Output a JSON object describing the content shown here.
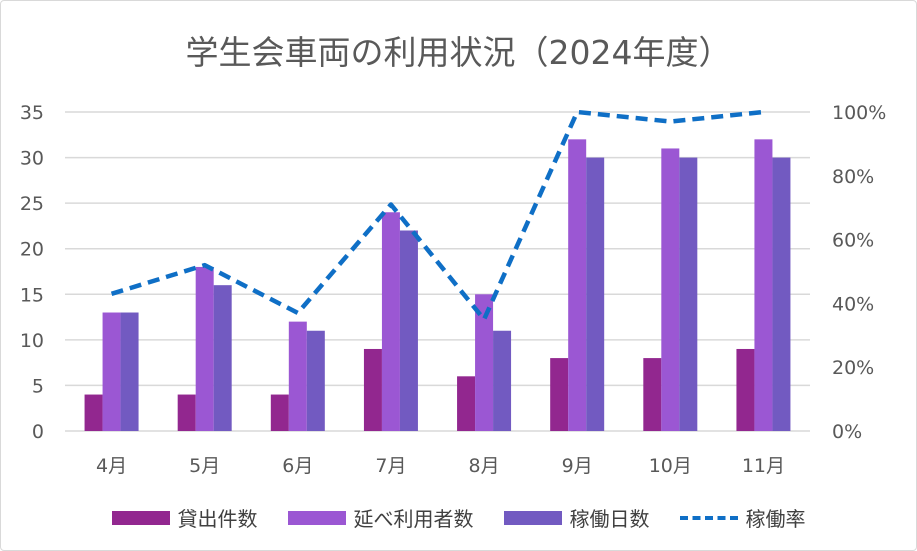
{
  "chart_data": {
    "type": "bar",
    "title": "学生会車両の利用状況（2024年度）",
    "categories": [
      "4月",
      "5月",
      "6月",
      "7月",
      "8月",
      "9月",
      "10月",
      "11月"
    ],
    "series": [
      {
        "name": "貸出件数",
        "type": "bar",
        "axis": "left",
        "color": "#92278F",
        "values": [
          4,
          4,
          4,
          9,
          6,
          8,
          8,
          9
        ]
      },
      {
        "name": "延べ利用者数",
        "type": "bar",
        "axis": "left",
        "color": "#9B57D3",
        "values": [
          13,
          18,
          12,
          24,
          15,
          32,
          31,
          32
        ]
      },
      {
        "name": "稼働日数",
        "type": "bar",
        "axis": "left",
        "color": "#725AC1",
        "values": [
          13,
          16,
          11,
          22,
          11,
          30,
          30,
          30
        ]
      },
      {
        "name": "稼働率",
        "type": "line",
        "style": "dashed",
        "axis": "right",
        "color": "#0F6FC6",
        "values": [
          43,
          52,
          37,
          71,
          35,
          100,
          97,
          100
        ]
      }
    ],
    "ylim": [
      0,
      35
    ],
    "yticks": [
      "0",
      "5",
      "10",
      "15",
      "20",
      "25",
      "30",
      "35"
    ],
    "y2lim": [
      0,
      100
    ],
    "y2ticks": [
      "0%",
      "20%",
      "40%",
      "60%",
      "80%",
      "100%"
    ],
    "grid": true,
    "legend": "bottom"
  }
}
